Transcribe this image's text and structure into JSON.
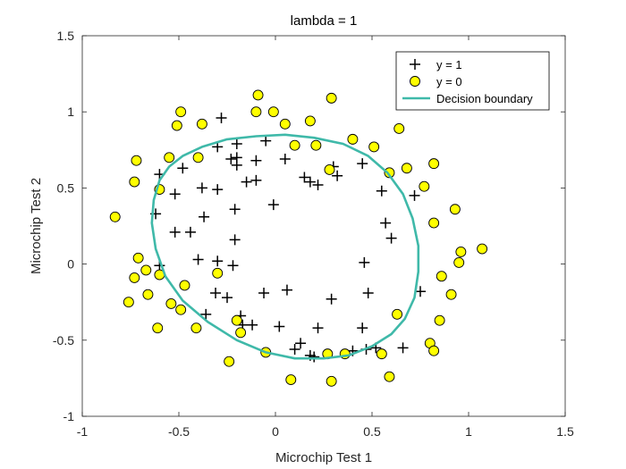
{
  "chart_data": {
    "type": "scatter",
    "title": "lambda = 1",
    "xlabel": "Microchip Test 1",
    "ylabel": "Microchip Test 2",
    "xlim": [
      -1,
      1.5
    ],
    "ylim": [
      -1,
      1.5
    ],
    "xticks": [
      -1,
      -0.5,
      0,
      0.5,
      1,
      1.5
    ],
    "yticks": [
      -1,
      -0.5,
      0,
      0.5,
      1,
      1.5
    ],
    "xtick_labels": [
      "-1",
      "-0.5",
      "0",
      "0.5",
      "1",
      "1.5"
    ],
    "ytick_labels": [
      "-1",
      "-0.5",
      "0",
      "0.5",
      "1",
      "1.5"
    ],
    "grid": false,
    "legend_placement": "top-right",
    "series": [
      {
        "name": "y = 1",
        "marker": "plus",
        "color": "#000000",
        "points": [
          [
            -0.28,
            0.96
          ],
          [
            -0.3,
            0.77
          ],
          [
            -0.2,
            0.79
          ],
          [
            -0.05,
            0.81
          ],
          [
            -0.23,
            0.69
          ],
          [
            -0.2,
            0.7
          ],
          [
            -0.1,
            0.68
          ],
          [
            -0.2,
            0.65
          ],
          [
            0.05,
            0.69
          ],
          [
            -0.48,
            0.63
          ],
          [
            -0.6,
            0.59
          ],
          [
            -0.15,
            0.54
          ],
          [
            -0.1,
            0.55
          ],
          [
            0.15,
            0.57
          ],
          [
            0.18,
            0.54
          ],
          [
            0.22,
            0.52
          ],
          [
            0.3,
            0.64
          ],
          [
            0.32,
            0.58
          ],
          [
            0.45,
            0.66
          ],
          [
            -0.38,
            0.5
          ],
          [
            -0.3,
            0.49
          ],
          [
            -0.52,
            0.46
          ],
          [
            -0.62,
            0.33
          ],
          [
            -0.37,
            0.31
          ],
          [
            -0.21,
            0.36
          ],
          [
            -0.01,
            0.39
          ],
          [
            -0.21,
            0.16
          ],
          [
            -0.52,
            0.21
          ],
          [
            -0.44,
            0.21
          ],
          [
            0.55,
            0.48
          ],
          [
            0.72,
            0.45
          ],
          [
            0.57,
            0.27
          ],
          [
            0.6,
            0.17
          ],
          [
            -0.4,
            0.03
          ],
          [
            -0.3,
            0.02
          ],
          [
            -0.6,
            -0.01
          ],
          [
            -0.22,
            -0.01
          ],
          [
            0.46,
            0.01
          ],
          [
            -0.31,
            -0.19
          ],
          [
            -0.25,
            -0.22
          ],
          [
            -0.06,
            -0.19
          ],
          [
            0.06,
            -0.17
          ],
          [
            0.29,
            -0.23
          ],
          [
            0.48,
            -0.19
          ],
          [
            0.75,
            -0.18
          ],
          [
            -0.36,
            -0.33
          ],
          [
            -0.18,
            -0.34
          ],
          [
            -0.17,
            -0.4
          ],
          [
            -0.12,
            -0.4
          ],
          [
            0.02,
            -0.41
          ],
          [
            0.22,
            -0.42
          ],
          [
            0.45,
            -0.42
          ],
          [
            0.13,
            -0.52
          ],
          [
            0.18,
            -0.6
          ],
          [
            0.2,
            -0.61
          ],
          [
            0.4,
            -0.57
          ],
          [
            0.47,
            -0.56
          ],
          [
            0.52,
            -0.55
          ],
          [
            0.66,
            -0.55
          ],
          [
            0.1,
            -0.56
          ]
        ]
      },
      {
        "name": "y = 0",
        "marker": "circle",
        "color": "#ffff00",
        "edge_color": "#000000",
        "points": [
          [
            -0.09,
            1.11
          ],
          [
            0.29,
            1.09
          ],
          [
            -0.49,
            1.0
          ],
          [
            -0.1,
            1.0
          ],
          [
            -0.01,
            1.0
          ],
          [
            -0.51,
            0.91
          ],
          [
            -0.38,
            0.92
          ],
          [
            0.05,
            0.92
          ],
          [
            0.18,
            0.94
          ],
          [
            0.64,
            0.89
          ],
          [
            -0.55,
            0.7
          ],
          [
            -0.72,
            0.68
          ],
          [
            -0.4,
            0.7
          ],
          [
            0.1,
            0.78
          ],
          [
            0.21,
            0.78
          ],
          [
            0.4,
            0.82
          ],
          [
            0.51,
            0.77
          ],
          [
            0.59,
            0.6
          ],
          [
            0.68,
            0.63
          ],
          [
            0.82,
            0.66
          ],
          [
            0.28,
            0.62
          ],
          [
            -0.73,
            0.54
          ],
          [
            -0.6,
            0.49
          ],
          [
            0.77,
            0.51
          ],
          [
            -0.83,
            0.31
          ],
          [
            0.82,
            0.27
          ],
          [
            0.93,
            0.36
          ],
          [
            0.96,
            0.08
          ],
          [
            1.07,
            0.1
          ],
          [
            -0.71,
            0.04
          ],
          [
            -0.67,
            -0.04
          ],
          [
            0.95,
            0.01
          ],
          [
            -0.6,
            -0.07
          ],
          [
            -0.73,
            -0.09
          ],
          [
            -0.3,
            -0.06
          ],
          [
            -0.47,
            -0.14
          ],
          [
            0.86,
            -0.08
          ],
          [
            -0.66,
            -0.2
          ],
          [
            -0.76,
            -0.25
          ],
          [
            0.91,
            -0.2
          ],
          [
            -0.54,
            -0.26
          ],
          [
            -0.49,
            -0.3
          ],
          [
            0.63,
            -0.33
          ],
          [
            -0.2,
            -0.37
          ],
          [
            -0.18,
            -0.45
          ],
          [
            -0.61,
            -0.42
          ],
          [
            -0.41,
            -0.42
          ],
          [
            0.85,
            -0.37
          ],
          [
            -0.05,
            -0.58
          ],
          [
            0.27,
            -0.59
          ],
          [
            0.36,
            -0.59
          ],
          [
            0.8,
            -0.52
          ],
          [
            0.82,
            -0.57
          ],
          [
            0.55,
            -0.59
          ],
          [
            -0.24,
            -0.64
          ],
          [
            0.08,
            -0.76
          ],
          [
            0.29,
            -0.77
          ],
          [
            0.59,
            -0.74
          ]
        ]
      },
      {
        "name": "Decision boundary",
        "marker": "line",
        "color": "#3fb9a9",
        "closed": true,
        "points": [
          [
            -0.6,
            0.55
          ],
          [
            -0.55,
            0.64
          ],
          [
            -0.48,
            0.71
          ],
          [
            -0.38,
            0.77
          ],
          [
            -0.25,
            0.82
          ],
          [
            -0.1,
            0.84
          ],
          [
            0.05,
            0.85
          ],
          [
            0.2,
            0.83
          ],
          [
            0.35,
            0.79
          ],
          [
            0.48,
            0.71
          ],
          [
            0.58,
            0.6
          ],
          [
            0.66,
            0.46
          ],
          [
            0.71,
            0.3
          ],
          [
            0.74,
            0.12
          ],
          [
            0.74,
            -0.05
          ],
          [
            0.72,
            -0.22
          ],
          [
            0.67,
            -0.36
          ],
          [
            0.6,
            -0.46
          ],
          [
            0.5,
            -0.54
          ],
          [
            0.38,
            -0.6
          ],
          [
            0.25,
            -0.62
          ],
          [
            0.1,
            -0.62
          ],
          [
            -0.05,
            -0.58
          ],
          [
            -0.2,
            -0.5
          ],
          [
            -0.35,
            -0.38
          ],
          [
            -0.48,
            -0.24
          ],
          [
            -0.57,
            -0.08
          ],
          [
            -0.62,
            0.1
          ],
          [
            -0.64,
            0.27
          ],
          [
            -0.63,
            0.42
          ]
        ]
      }
    ]
  }
}
